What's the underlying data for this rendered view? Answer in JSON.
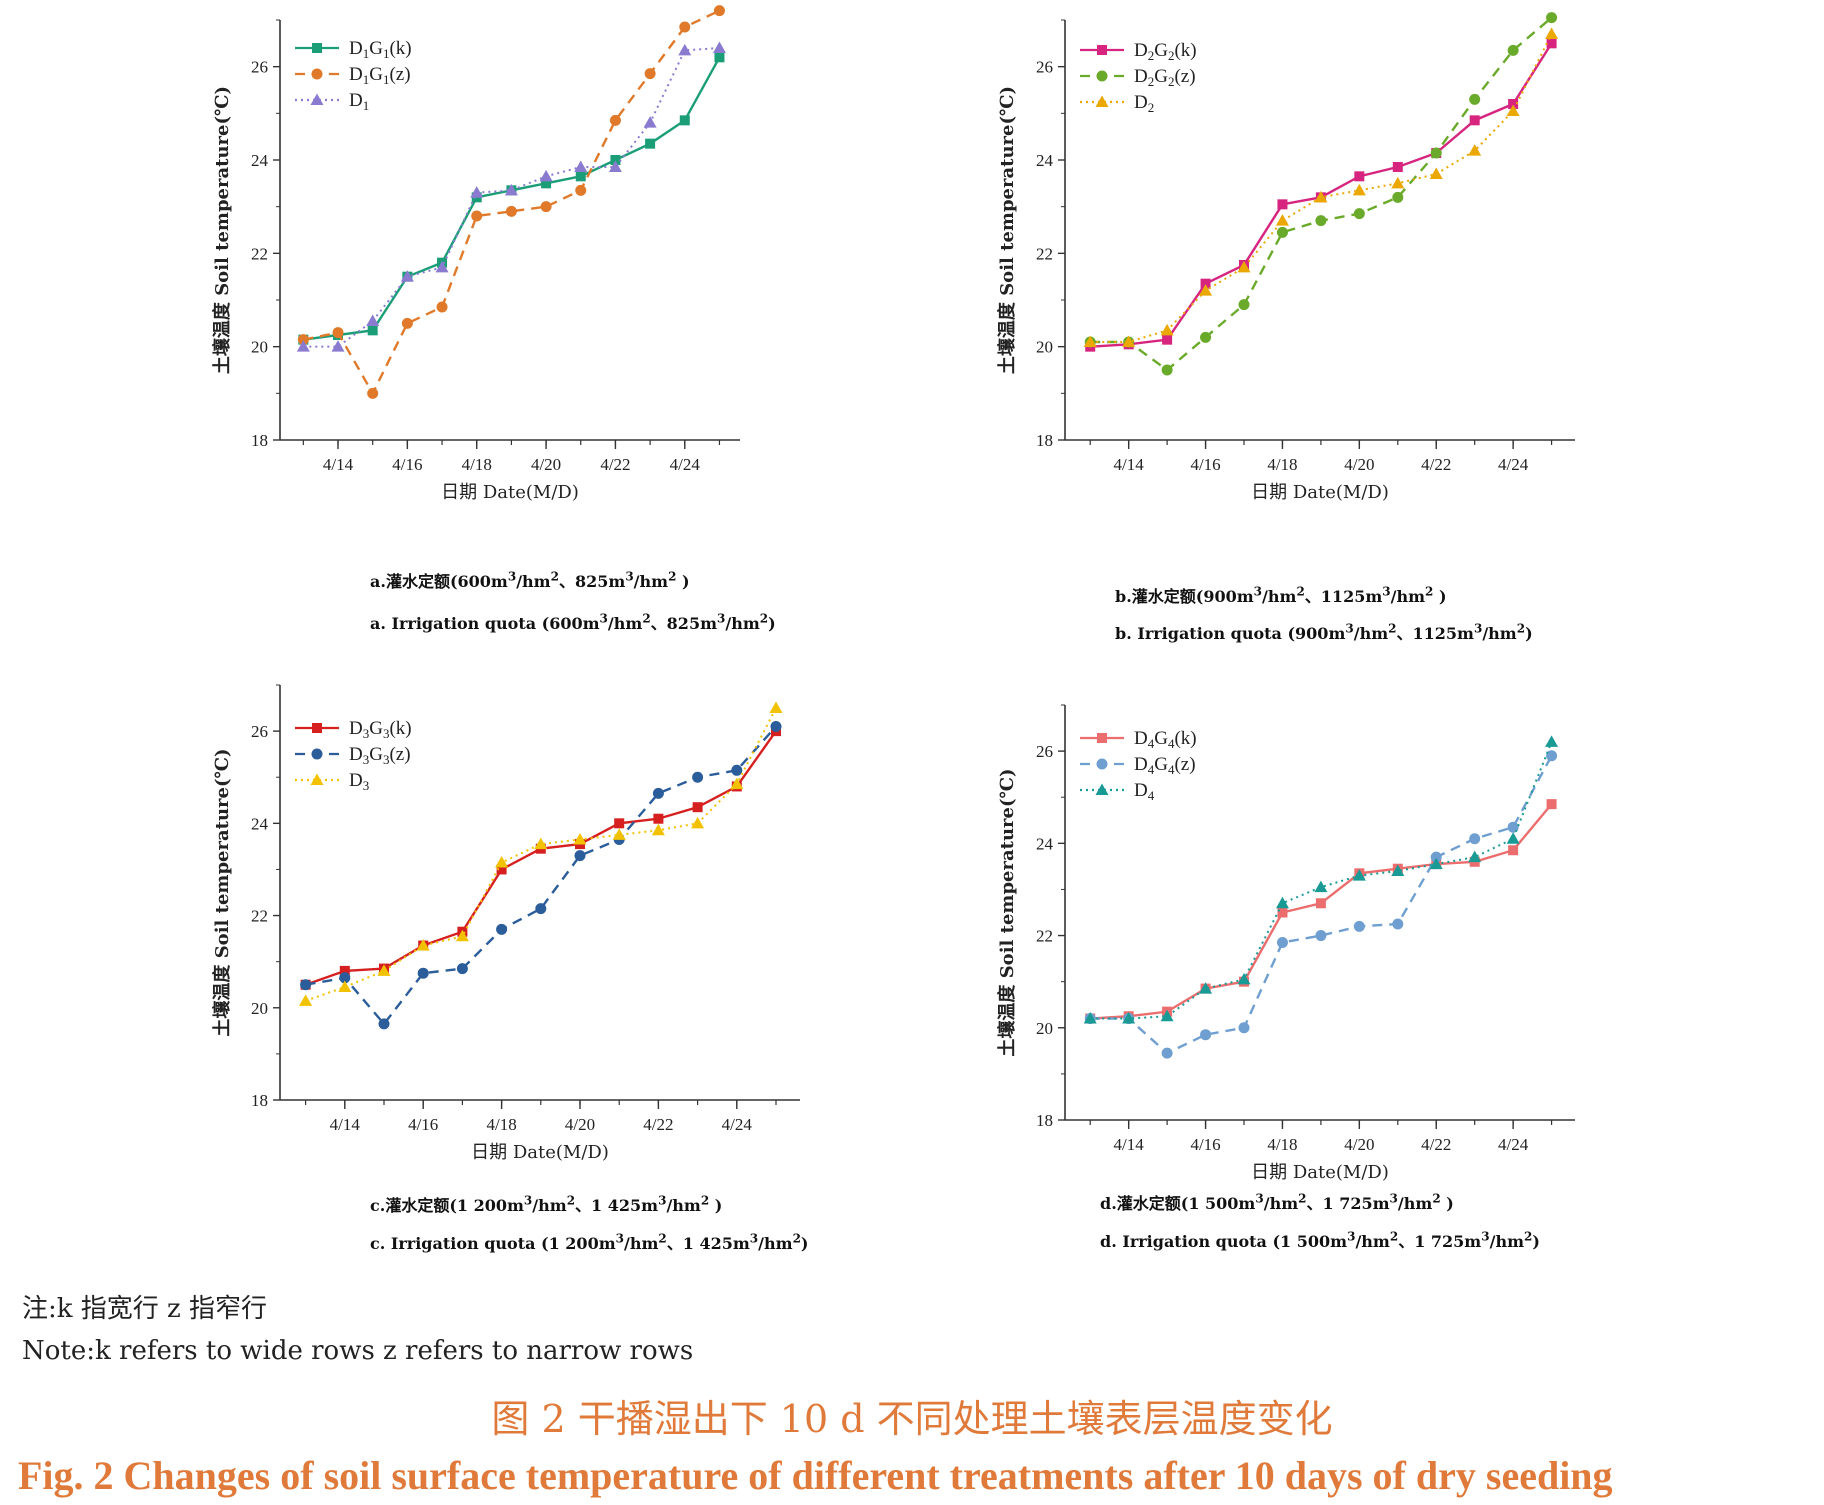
{
  "shared": {
    "x_ticks": [
      "4/14",
      "4/16",
      "4/18",
      "4/20",
      "4/22",
      "4/24"
    ],
    "y_ticks": [
      "18",
      "20",
      "22",
      "24",
      "26"
    ],
    "x_axis_title": "日期  Date(M/D)",
    "y_axis_title": "土壤温度 Soil temperature(℃)"
  },
  "captions": [
    {
      "cn_prefix": "a.灌水定额(600m",
      "cn_mid": "/hm",
      "cn_mid2": "、825m",
      "cn_end": "/hm",
      "cn_close": " )",
      "en_prefix": "a. Irrigation quota (600m",
      "en_mid": "/hm",
      "en_mid2": "、825m",
      "en_end": "/hm",
      "en_close": ")",
      "sup3": "3",
      "sup2": "2"
    },
    {
      "cn_prefix": "b.灌水定额(900m",
      "cn_mid": "/hm",
      "cn_mid2": "、1125m",
      "cn_end": "/hm",
      "cn_close": " )",
      "en_prefix": "b. Irrigation quota (900m",
      "en_mid": "/hm",
      "en_mid2": "、1125m",
      "en_end": "/hm",
      "en_close": ")",
      "sup3": "3",
      "sup2": "2"
    },
    {
      "cn_prefix": "c.灌水定额(1 200m",
      "cn_mid": "/hm",
      "cn_mid2": "、1  425m",
      "cn_end": "/hm",
      "cn_close": " )",
      "en_prefix": "c. Irrigation quota (1 200m",
      "en_mid": "/hm",
      "en_mid2": "、1  425m",
      "en_end": "/hm",
      "en_close": ")",
      "sup3": "3",
      "sup2": "2"
    },
    {
      "cn_prefix": "d.灌水定额(1 500m",
      "cn_mid": "/hm",
      "cn_mid2": "、1 725m",
      "cn_end": "/hm",
      "cn_close": " )",
      "en_prefix": "d. Irrigation quota (1 500m",
      "en_mid": "/hm",
      "en_mid2": "、1 725m",
      "en_end": "/hm",
      "en_close": ")",
      "sup3": "3",
      "sup2": "2"
    }
  ],
  "note": {
    "cn": "注:k 指宽行 z 指窄行",
    "en": "Note:k refers to wide rows z refers to narrow rows"
  },
  "figure_title": {
    "cn": "图 2    干播湿出下 10 d 不同处理土壤表层温度变化",
    "en": "Fig. 2    Changes of soil surface temperature of different treatments after 10 days of dry seeding"
  },
  "chart_data": [
    {
      "type": "line",
      "xlabel": "日期  Date(M/D)",
      "ylabel": "土壤温度 Soil temperature(℃)",
      "x": [
        "4/13",
        "4/14",
        "4/15",
        "4/16",
        "4/17",
        "4/18",
        "4/19",
        "4/20",
        "4/21",
        "4/22",
        "4/23",
        "4/24",
        "4/25"
      ],
      "ylim": [
        18,
        27
      ],
      "legend_position": "top-left",
      "series": [
        {
          "name": "D1G1(k)",
          "label_main": "D",
          "sub1": "1",
          "label_mid": "G",
          "sub2": "1",
          "label_tail": "(k)",
          "color": "#1b9e77",
          "dash": "solid",
          "marker": "square",
          "values": [
            20.15,
            20.25,
            20.35,
            21.5,
            21.8,
            23.2,
            23.35,
            23.5,
            23.65,
            24.0,
            24.35,
            24.85,
            26.2
          ]
        },
        {
          "name": "D1G1(z)",
          "label_main": "D",
          "sub1": "1",
          "label_mid": "G",
          "sub2": "1",
          "label_tail": "(z)",
          "color": "#e07a2a",
          "dash": "dashed",
          "marker": "circle",
          "values": [
            20.15,
            20.3,
            19.0,
            20.5,
            20.85,
            22.8,
            22.9,
            23.0,
            23.35,
            24.85,
            25.85,
            26.85,
            27.2
          ]
        },
        {
          "name": "D1",
          "label_main": "D",
          "sub1": "1",
          "label_mid": "",
          "sub2": "",
          "label_tail": "",
          "color": "#8a7bd0",
          "dash": "dotted",
          "marker": "triangle",
          "values": [
            20.0,
            20.0,
            20.55,
            21.5,
            21.7,
            23.3,
            23.35,
            23.65,
            23.85,
            23.85,
            24.8,
            26.35,
            26.4
          ]
        }
      ]
    },
    {
      "type": "line",
      "xlabel": "日期  Date(M/D)",
      "ylabel": "土壤温度 Soil temperature(℃)",
      "x": [
        "4/13",
        "4/14",
        "4/15",
        "4/16",
        "4/17",
        "4/18",
        "4/19",
        "4/20",
        "4/21",
        "4/22",
        "4/23",
        "4/24",
        "4/25"
      ],
      "ylim": [
        18,
        27
      ],
      "legend_position": "top-left",
      "series": [
        {
          "name": "D2G2(k)",
          "label_main": "D",
          "sub1": "2",
          "label_mid": "G",
          "sub2": "2",
          "label_tail": "(k)",
          "color": "#d6247f",
          "dash": "solid",
          "marker": "square",
          "values": [
            20.0,
            20.05,
            20.15,
            21.35,
            21.75,
            23.05,
            23.2,
            23.65,
            23.85,
            24.15,
            24.85,
            25.2,
            26.5
          ]
        },
        {
          "name": "D2G2(z)",
          "label_main": "D",
          "sub1": "2",
          "label_mid": "G",
          "sub2": "2",
          "label_tail": "(z)",
          "color": "#6aaa2a",
          "dash": "dashed",
          "marker": "circle",
          "values": [
            20.1,
            20.1,
            19.5,
            20.2,
            20.9,
            22.45,
            22.7,
            22.85,
            23.2,
            24.15,
            25.3,
            26.35,
            27.05
          ]
        },
        {
          "name": "D2",
          "label_main": "D",
          "sub1": "2",
          "label_mid": "",
          "sub2": "",
          "label_tail": "",
          "color": "#eaa800",
          "dash": "dotted",
          "marker": "triangle",
          "values": [
            20.1,
            20.1,
            20.35,
            21.2,
            21.7,
            22.7,
            23.2,
            23.35,
            23.5,
            23.7,
            24.2,
            25.05,
            26.7
          ]
        }
      ]
    },
    {
      "type": "line",
      "xlabel": "日期  Date(M/D)",
      "ylabel": "土壤温度 Soil temperature(℃)",
      "x": [
        "4/13",
        "4/14",
        "4/15",
        "4/16",
        "4/17",
        "4/18",
        "4/19",
        "4/20",
        "4/21",
        "4/22",
        "4/23",
        "4/24",
        "4/25"
      ],
      "ylim": [
        18,
        27
      ],
      "legend_position": "top-left",
      "series": [
        {
          "name": "D3G3(k)",
          "label_main": "D",
          "sub1": "3",
          "label_mid": "G",
          "sub2": "3",
          "label_tail": "(k)",
          "color": "#d62020",
          "dash": "solid",
          "marker": "square",
          "values": [
            20.5,
            20.8,
            20.85,
            21.35,
            21.65,
            23.0,
            23.45,
            23.55,
            24.0,
            24.1,
            24.35,
            24.8,
            26.0
          ]
        },
        {
          "name": "D3G3(z)",
          "label_main": "D",
          "sub1": "3",
          "label_mid": "G",
          "sub2": "3",
          "label_tail": "(z)",
          "color": "#2b5d9a",
          "dash": "dashed",
          "marker": "circle",
          "values": [
            20.5,
            20.65,
            19.65,
            20.75,
            20.85,
            21.7,
            22.15,
            23.3,
            23.65,
            24.65,
            25.0,
            25.15,
            26.1
          ]
        },
        {
          "name": "D3",
          "label_main": "D",
          "sub1": "3",
          "label_mid": "",
          "sub2": "",
          "label_tail": "",
          "color": "#f2c200",
          "dash": "dotted",
          "marker": "triangle",
          "values": [
            20.15,
            20.45,
            20.8,
            21.35,
            21.55,
            23.15,
            23.55,
            23.65,
            23.75,
            23.85,
            24.0,
            24.85,
            26.5
          ]
        }
      ]
    },
    {
      "type": "line",
      "xlabel": "日期  Date(M/D)",
      "ylabel": "土壤温度 Soil temperature(℃)",
      "x": [
        "4/13",
        "4/14",
        "4/15",
        "4/16",
        "4/17",
        "4/18",
        "4/19",
        "4/20",
        "4/21",
        "4/22",
        "4/23",
        "4/24",
        "4/25"
      ],
      "ylim": [
        18,
        27
      ],
      "legend_position": "top-left",
      "series": [
        {
          "name": "D4G4(k)",
          "label_main": "D",
          "sub1": "4",
          "label_mid": "G",
          "sub2": "4",
          "label_tail": "(k)",
          "color": "#ec6d6d",
          "dash": "solid",
          "marker": "square",
          "values": [
            20.2,
            20.25,
            20.35,
            20.85,
            21.0,
            22.5,
            22.7,
            23.35,
            23.45,
            23.55,
            23.6,
            23.85,
            24.85
          ]
        },
        {
          "name": "D4G4(z)",
          "label_main": "D",
          "sub1": "4",
          "label_mid": "G",
          "sub2": "4",
          "label_tail": "(z)",
          "color": "#6e9fd0",
          "dash": "dashed",
          "marker": "circle",
          "values": [
            20.2,
            20.2,
            19.45,
            19.85,
            20.0,
            21.85,
            22.0,
            22.2,
            22.25,
            23.7,
            24.1,
            24.35,
            25.9
          ]
        },
        {
          "name": "D4",
          "label_main": "D",
          "sub1": "4",
          "label_mid": "",
          "sub2": "",
          "label_tail": "",
          "color": "#1a9a95",
          "dash": "dotted",
          "marker": "triangle",
          "values": [
            20.2,
            20.2,
            20.25,
            20.85,
            21.05,
            22.7,
            23.05,
            23.3,
            23.4,
            23.55,
            23.7,
            24.1,
            26.2
          ]
        }
      ]
    }
  ]
}
